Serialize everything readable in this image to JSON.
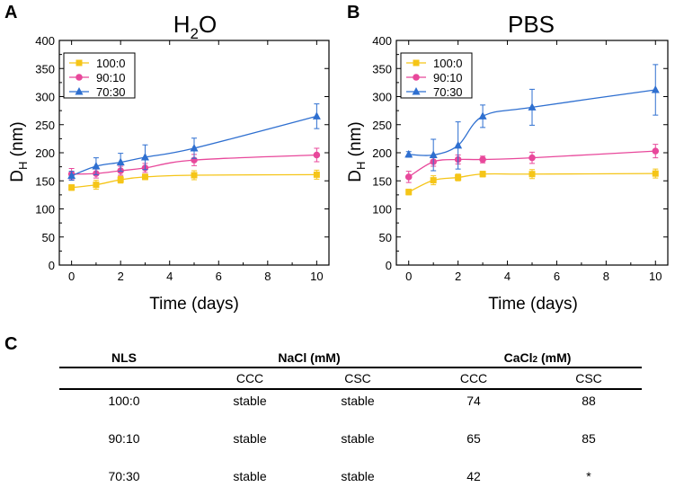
{
  "panels": {
    "a_letter": "A",
    "b_letter": "B",
    "c_letter": "C"
  },
  "chart_data": [
    {
      "type": "line",
      "title_main": "H",
      "title_sub": "2",
      "title_end": "O",
      "xlabel": "Time (days)",
      "ylabel_main": "D",
      "ylabel_sub": "H",
      "ylabel_end": " (nm)",
      "xlim": [
        -0.5,
        10.5
      ],
      "ylim": [
        0,
        400
      ],
      "xticks": [
        0,
        2,
        4,
        6,
        8,
        10
      ],
      "yticks": [
        0,
        50,
        100,
        150,
        200,
        250,
        300,
        350,
        400
      ],
      "legend": "top-left",
      "x": [
        0,
        1,
        2,
        3,
        5,
        10
      ],
      "series": [
        {
          "name": "100:0",
          "color": "#f5c518",
          "marker": "square",
          "values": [
            138,
            143,
            152,
            157,
            160,
            161
          ],
          "errors": [
            5,
            8,
            6,
            5,
            8,
            8
          ]
        },
        {
          "name": "90:10",
          "color": "#e8489b",
          "marker": "circle",
          "values": [
            162,
            163,
            168,
            173,
            187,
            196
          ],
          "errors": [
            10,
            8,
            8,
            8,
            10,
            12
          ]
        },
        {
          "name": "70:30",
          "color": "#2e6fd0",
          "marker": "triangle",
          "values": [
            159,
            176,
            183,
            192,
            208,
            265
          ],
          "errors": [
            8,
            15,
            16,
            22,
            18,
            22
          ]
        }
      ]
    },
    {
      "type": "line",
      "title_main": "PBS",
      "xlabel": "Time (days)",
      "ylabel_main": "D",
      "ylabel_sub": "H",
      "ylabel_end": " (nm)",
      "xlim": [
        -0.5,
        10.5
      ],
      "ylim": [
        0,
        400
      ],
      "xticks": [
        0,
        2,
        4,
        6,
        8,
        10
      ],
      "yticks": [
        0,
        50,
        100,
        150,
        200,
        250,
        300,
        350,
        400
      ],
      "legend": "top-left",
      "x": [
        0,
        1,
        2,
        3,
        5,
        10
      ],
      "series": [
        {
          "name": "100:0",
          "color": "#f5c518",
          "marker": "square",
          "values": [
            130,
            151,
            156,
            162,
            162,
            163
          ],
          "errors": [
            5,
            8,
            6,
            5,
            8,
            8
          ]
        },
        {
          "name": "90:10",
          "color": "#e8489b",
          "marker": "circle",
          "values": [
            157,
            184,
            188,
            188,
            191,
            203
          ],
          "errors": [
            10,
            8,
            8,
            6,
            10,
            12
          ]
        },
        {
          "name": "70:30",
          "color": "#2e6fd0",
          "marker": "triangle",
          "values": [
            197,
            196,
            213,
            265,
            281,
            312
          ],
          "errors": [
            5,
            28,
            42,
            20,
            32,
            45
          ]
        }
      ]
    }
  ],
  "table": {
    "header": {
      "nls": "NLS",
      "nacl": "NaCl (mM)",
      "cacl_main": "CaCl",
      "cacl_sub": "2",
      "cacl_end": " (mM)"
    },
    "subheader": [
      "CCC",
      "CSC",
      "CCC",
      "CSC"
    ],
    "rows": [
      {
        "nls": "100:0",
        "nacl_ccc": "stable",
        "nacl_csc": "stable",
        "cacl2_ccc": "74",
        "cacl2_csc": "88"
      },
      {
        "nls": "90:10",
        "nacl_ccc": "stable",
        "nacl_csc": "stable",
        "cacl2_ccc": "65",
        "cacl2_csc": "85"
      },
      {
        "nls": "70:30",
        "nacl_ccc": "stable",
        "nacl_csc": "stable",
        "cacl2_ccc": "42",
        "cacl2_csc": "*"
      }
    ]
  }
}
